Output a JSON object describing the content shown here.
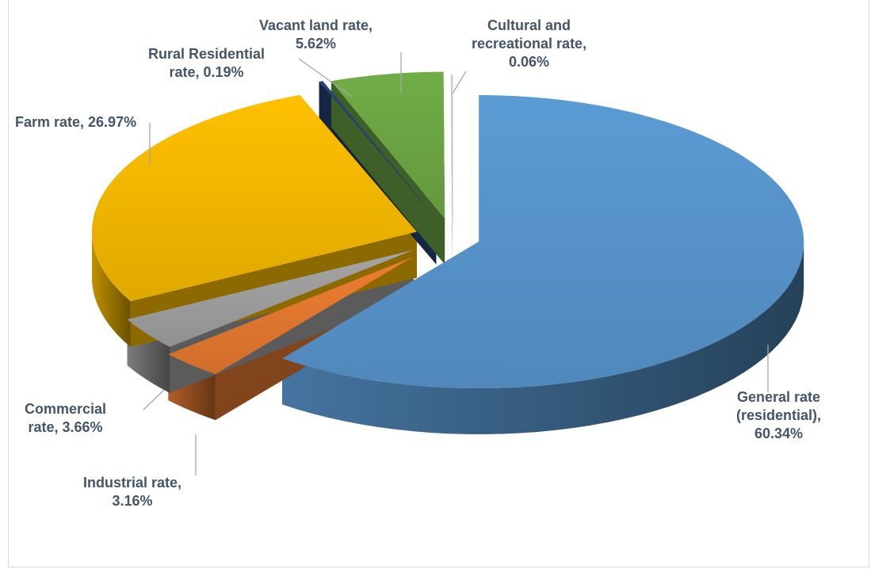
{
  "chart_data": {
    "type": "pie",
    "style": "3d-exploded",
    "title": "",
    "slices": [
      {
        "name": "General rate (residential)",
        "value": 60.34,
        "label_lines": [
          "General rate",
          "(residential),",
          "60.34%"
        ],
        "color": "#5b9bd5"
      },
      {
        "name": "Industrial rate",
        "value": 3.16,
        "label_lines": [
          "Industrial rate,",
          "3.16%"
        ],
        "color": "#ed7d31"
      },
      {
        "name": "Commercial rate",
        "value": 3.66,
        "label_lines": [
          "Commercial",
          "rate, 3.66%"
        ],
        "color": "#a5a5a5"
      },
      {
        "name": "Farm rate",
        "value": 26.97,
        "label_lines": [
          "Farm rate, 26.97%"
        ],
        "color": "#ffc000"
      },
      {
        "name": "Rural Residential rate",
        "value": 0.19,
        "label_lines": [
          "Rural Residential",
          "rate, 0.19%"
        ],
        "color": "#264478"
      },
      {
        "name": "Vacant land rate",
        "value": 5.62,
        "label_lines": [
          "Vacant land rate,",
          "5.62%"
        ],
        "color": "#70ad47"
      },
      {
        "name": "Cultural and recreational rate",
        "value": 0.06,
        "label_lines": [
          "Cultural and",
          "recreational rate,",
          "0.06%"
        ],
        "color": "#ffffff"
      }
    ],
    "legend": "none",
    "label_color": "#44546a"
  }
}
